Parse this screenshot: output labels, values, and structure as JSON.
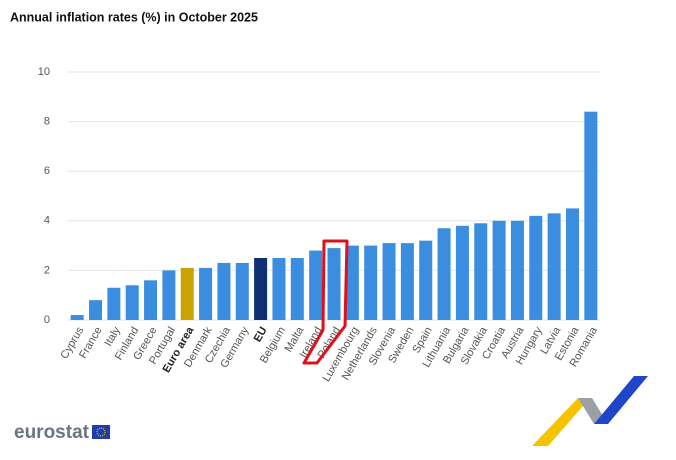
{
  "chart_data": {
    "type": "bar",
    "title": "Annual inflation rates (%) in October 2025",
    "categories": [
      "Cyprus",
      "France",
      "Italy",
      "Finland",
      "Greece",
      "Portugal",
      "Euro area",
      "Denmark",
      "Czechia",
      "Germany",
      "EU",
      "Belgium",
      "Malta",
      "Ireland",
      "Poland",
      "Luxembourg",
      "Netherlands",
      "Slovenia",
      "Sweden",
      "Spain",
      "Lithuania",
      "Bulgaria",
      "Slovakia",
      "Croatia",
      "Austria",
      "Hungary",
      "Latvia",
      "Estonia",
      "Romania"
    ],
    "values": [
      0.2,
      0.8,
      1.3,
      1.4,
      1.6,
      2.0,
      2.1,
      2.1,
      2.3,
      2.3,
      2.5,
      2.5,
      2.5,
      2.8,
      2.9,
      3.0,
      3.0,
      3.1,
      3.1,
      3.2,
      3.7,
      3.8,
      3.9,
      4.0,
      4.0,
      4.2,
      4.3,
      4.5,
      8.4
    ],
    "colors": [
      "#3b8de0",
      "#3b8de0",
      "#3b8de0",
      "#3b8de0",
      "#3b8de0",
      "#3b8de0",
      "#c9a400",
      "#3b8de0",
      "#3b8de0",
      "#3b8de0",
      "#0e2f74",
      "#3b8de0",
      "#3b8de0",
      "#3b8de0",
      "#3b8de0",
      "#3b8de0",
      "#3b8de0",
      "#3b8de0",
      "#3b8de0",
      "#3b8de0",
      "#3b8de0",
      "#3b8de0",
      "#3b8de0",
      "#3b8de0",
      "#3b8de0",
      "#3b8de0",
      "#3b8de0",
      "#3b8de0",
      "#3b8de0"
    ],
    "ylim": [
      0,
      10
    ],
    "yticks": [
      0,
      2,
      4,
      6,
      8,
      10
    ],
    "grid": true,
    "logo": "eurostat"
  }
}
